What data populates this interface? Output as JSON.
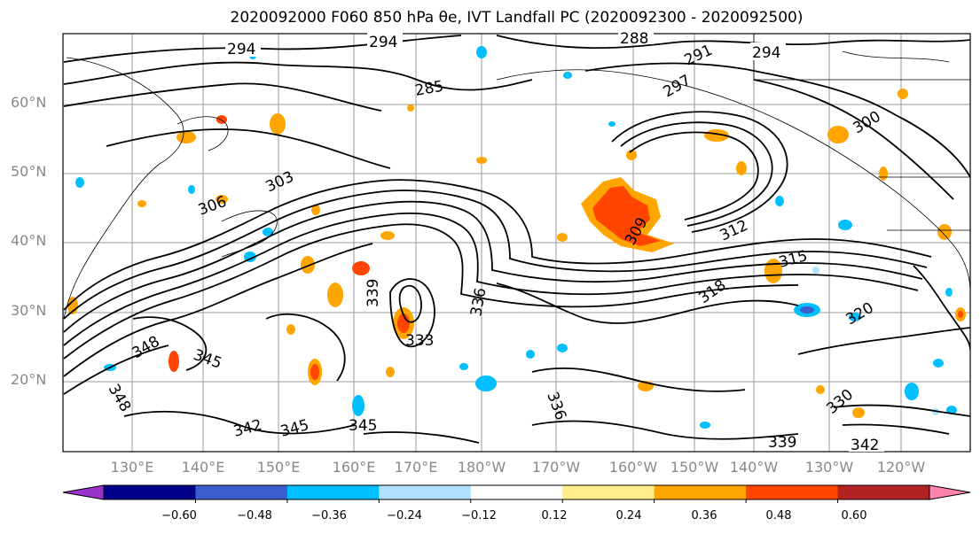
{
  "title": "2020092000 F060 850 hPa θe, IVT Landfall PC (2020092300 - 2020092500)",
  "latitude_labels": [
    "60°N",
    "50°N",
    "40°N",
    "30°N",
    "20°N"
  ],
  "longitude_labels": [
    "130°E",
    "140°E",
    "150°E",
    "160°E",
    "170°E",
    "180°W",
    "170°W",
    "160°W",
    "150°W",
    "140°W",
    "130°W",
    "120°W"
  ],
  "contour_labels": [
    "294",
    "294",
    "288",
    "291",
    "294",
    "285",
    "297",
    "300",
    "303",
    "306",
    "309",
    "312",
    "315",
    "318",
    "320",
    "330",
    "339",
    "336",
    "342",
    "345",
    "345",
    "345",
    "348",
    "348",
    "339",
    "333",
    "336",
    "342"
  ],
  "colorbar": {
    "colors": [
      "#9932cc",
      "#00008b",
      "#3a5fcd",
      "#00bfff",
      "#b0e2ff",
      "#ffffff",
      "#ffec8b",
      "#ffa500",
      "#ff4500",
      "#b22222",
      "#ff82ab"
    ],
    "tick_labels": [
      "−0.60",
      "−0.48",
      "−0.36",
      "−0.24",
      "−0.12",
      "0.12",
      "0.24",
      "0.36",
      "0.48",
      "0.60"
    ]
  }
}
